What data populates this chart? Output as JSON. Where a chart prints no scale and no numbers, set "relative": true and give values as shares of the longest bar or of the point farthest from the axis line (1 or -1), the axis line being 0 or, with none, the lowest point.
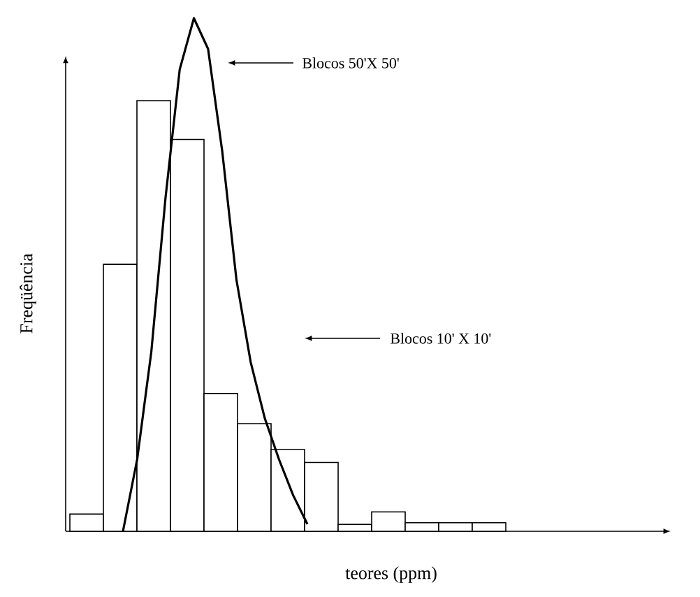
{
  "chart_data": [
    {
      "type": "bar",
      "relative": true,
      "xlabel": "teores (ppm)",
      "ylabel": "Freqüência",
      "color": "#ffffff",
      "categories": [
        null,
        null,
        null,
        null,
        null,
        null,
        null,
        null,
        null,
        null,
        null,
        null,
        null
      ],
      "values": [
        0.04,
        0.62,
        1,
        0.91,
        0.32,
        0.25,
        0.19,
        0.16,
        0.016,
        0.045,
        0.02,
        0.02,
        0.02
      ],
      "annotations": [
        "Blocos 10' X 10'"
      ]
    },
    {
      "type": "line",
      "relative": true,
      "color": "#000000",
      "categories": [
        null,
        null,
        null,
        null,
        null,
        null,
        null,
        null,
        null,
        null,
        null,
        null,
        null,
        null
      ],
      "values": [
        0,
        0.14,
        0.35,
        0.65,
        0.9,
        1,
        0.94,
        0.74,
        0.49,
        0.33,
        0.22,
        0.14,
        0.07,
        0.014
      ],
      "annotations": [
        "Blocos 50'X 50'"
      ]
    }
  ]
}
